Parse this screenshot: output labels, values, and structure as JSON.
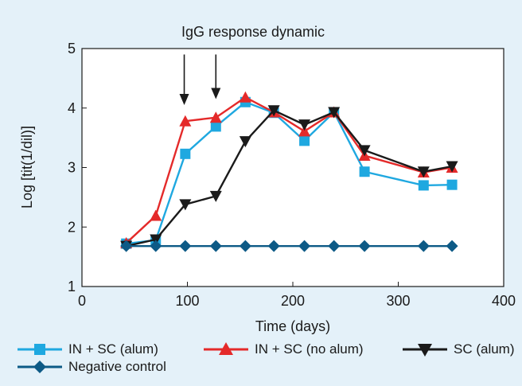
{
  "chart_data": {
    "type": "line",
    "title": "IgG response dynamic",
    "xlabel": "Time (days)",
    "ylabel": "Log [tit(1/dil)]",
    "xlim": [
      0,
      400
    ],
    "ylim": [
      1,
      5
    ],
    "xticks": [
      0,
      100,
      200,
      300,
      400
    ],
    "yticks": [
      1,
      2,
      3,
      4,
      5
    ],
    "grid": false,
    "legend_position": "bottom",
    "annotations": [
      {
        "type": "arrow",
        "x": 97,
        "from_y": 4.9,
        "to_y": 4.05
      },
      {
        "type": "arrow",
        "x": 127,
        "from_y": 4.9,
        "to_y": 4.15
      }
    ],
    "series": [
      {
        "name": "IN + SC (alum)",
        "color": "#1fa8e0",
        "marker": "square",
        "points": [
          [
            42,
            1.72
          ],
          [
            70,
            1.78
          ],
          [
            98,
            3.23
          ],
          [
            127,
            3.69
          ],
          [
            155,
            4.1
          ],
          [
            182,
            3.92
          ],
          [
            211,
            3.45
          ],
          [
            239,
            3.93
          ],
          [
            268,
            2.93
          ],
          [
            324,
            2.7
          ],
          [
            351,
            2.71
          ]
        ]
      },
      {
        "name": "IN + SC (no alum)",
        "color": "#e42a2a",
        "marker": "triangle-up",
        "points": [
          [
            42,
            1.73
          ],
          [
            70,
            2.19
          ],
          [
            98,
            3.78
          ],
          [
            127,
            3.84
          ],
          [
            155,
            4.18
          ],
          [
            182,
            3.93
          ],
          [
            211,
            3.61
          ],
          [
            239,
            3.93
          ],
          [
            268,
            3.2
          ],
          [
            324,
            2.92
          ],
          [
            351,
            3.0
          ]
        ]
      },
      {
        "name": "SC (alum)",
        "color": "#1a1a1a",
        "marker": "triangle-down",
        "points": [
          [
            42,
            1.68
          ],
          [
            70,
            1.79
          ],
          [
            98,
            2.38
          ],
          [
            127,
            2.52
          ],
          [
            155,
            3.44
          ],
          [
            182,
            3.96
          ],
          [
            211,
            3.72
          ],
          [
            239,
            3.93
          ],
          [
            268,
            3.29
          ],
          [
            324,
            2.93
          ],
          [
            351,
            3.02
          ]
        ]
      },
      {
        "name": "Negative control",
        "color": "#0d5a86",
        "marker": "diamond",
        "points": [
          [
            42,
            1.68
          ],
          [
            70,
            1.68
          ],
          [
            98,
            1.68
          ],
          [
            127,
            1.68
          ],
          [
            155,
            1.68
          ],
          [
            182,
            1.68
          ],
          [
            211,
            1.68
          ],
          [
            239,
            1.68
          ],
          [
            268,
            1.68
          ],
          [
            324,
            1.68
          ],
          [
            351,
            1.68
          ]
        ]
      }
    ]
  }
}
